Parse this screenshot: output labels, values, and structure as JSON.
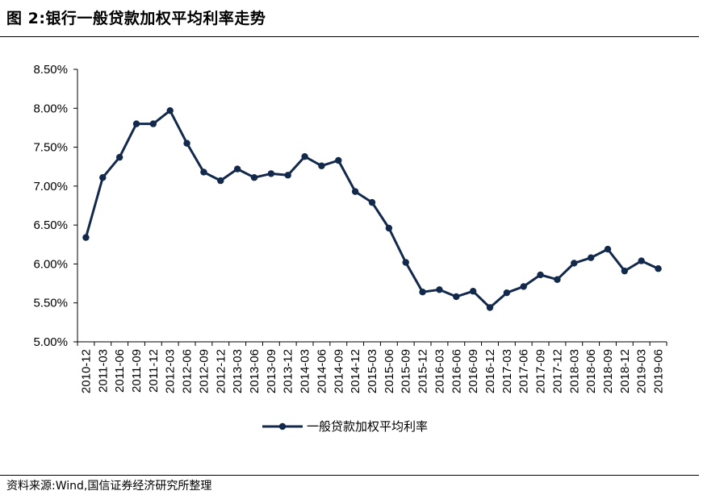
{
  "title": "图 2:银行一般贷款加权平均利率走势",
  "source": "资料来源:Wind,国信证券经济研究所整理",
  "chart_data": {
    "type": "line",
    "title": "",
    "xlabel": "",
    "ylabel": "",
    "ylim": [
      5.0,
      8.5
    ],
    "y_step": 0.5,
    "y_tick_labels": [
      "5.00%",
      "5.50%",
      "6.00%",
      "6.50%",
      "7.00%",
      "7.50%",
      "8.00%",
      "8.50%"
    ],
    "grid": false,
    "legend_position": "bottom-center",
    "color": "#13294b",
    "x": [
      "2010-12",
      "2011-03",
      "2011-06",
      "2011-09",
      "2011-12",
      "2012-03",
      "2012-06",
      "2012-09",
      "2012-12",
      "2013-03",
      "2013-06",
      "2013-09",
      "2013-12",
      "2014-03",
      "2014-06",
      "2014-09",
      "2014-12",
      "2015-03",
      "2015-06",
      "2015-09",
      "2015-12",
      "2016-03",
      "2016-06",
      "2016-09",
      "2016-12",
      "2017-03",
      "2017-06",
      "2017-09",
      "2017-12",
      "2018-03",
      "2018-06",
      "2018-09",
      "2018-12",
      "2019-03",
      "2019-06"
    ],
    "series": [
      {
        "name": "一般贷款加权平均利率",
        "values": [
          6.34,
          7.11,
          7.37,
          7.8,
          7.8,
          7.97,
          7.55,
          7.18,
          7.07,
          7.22,
          7.11,
          7.16,
          7.14,
          7.38,
          7.26,
          7.33,
          6.93,
          6.79,
          6.46,
          6.02,
          5.64,
          5.67,
          5.58,
          5.65,
          5.44,
          5.63,
          5.71,
          5.86,
          5.8,
          6.01,
          6.08,
          6.19,
          5.91,
          6.04,
          5.94
        ]
      }
    ]
  }
}
